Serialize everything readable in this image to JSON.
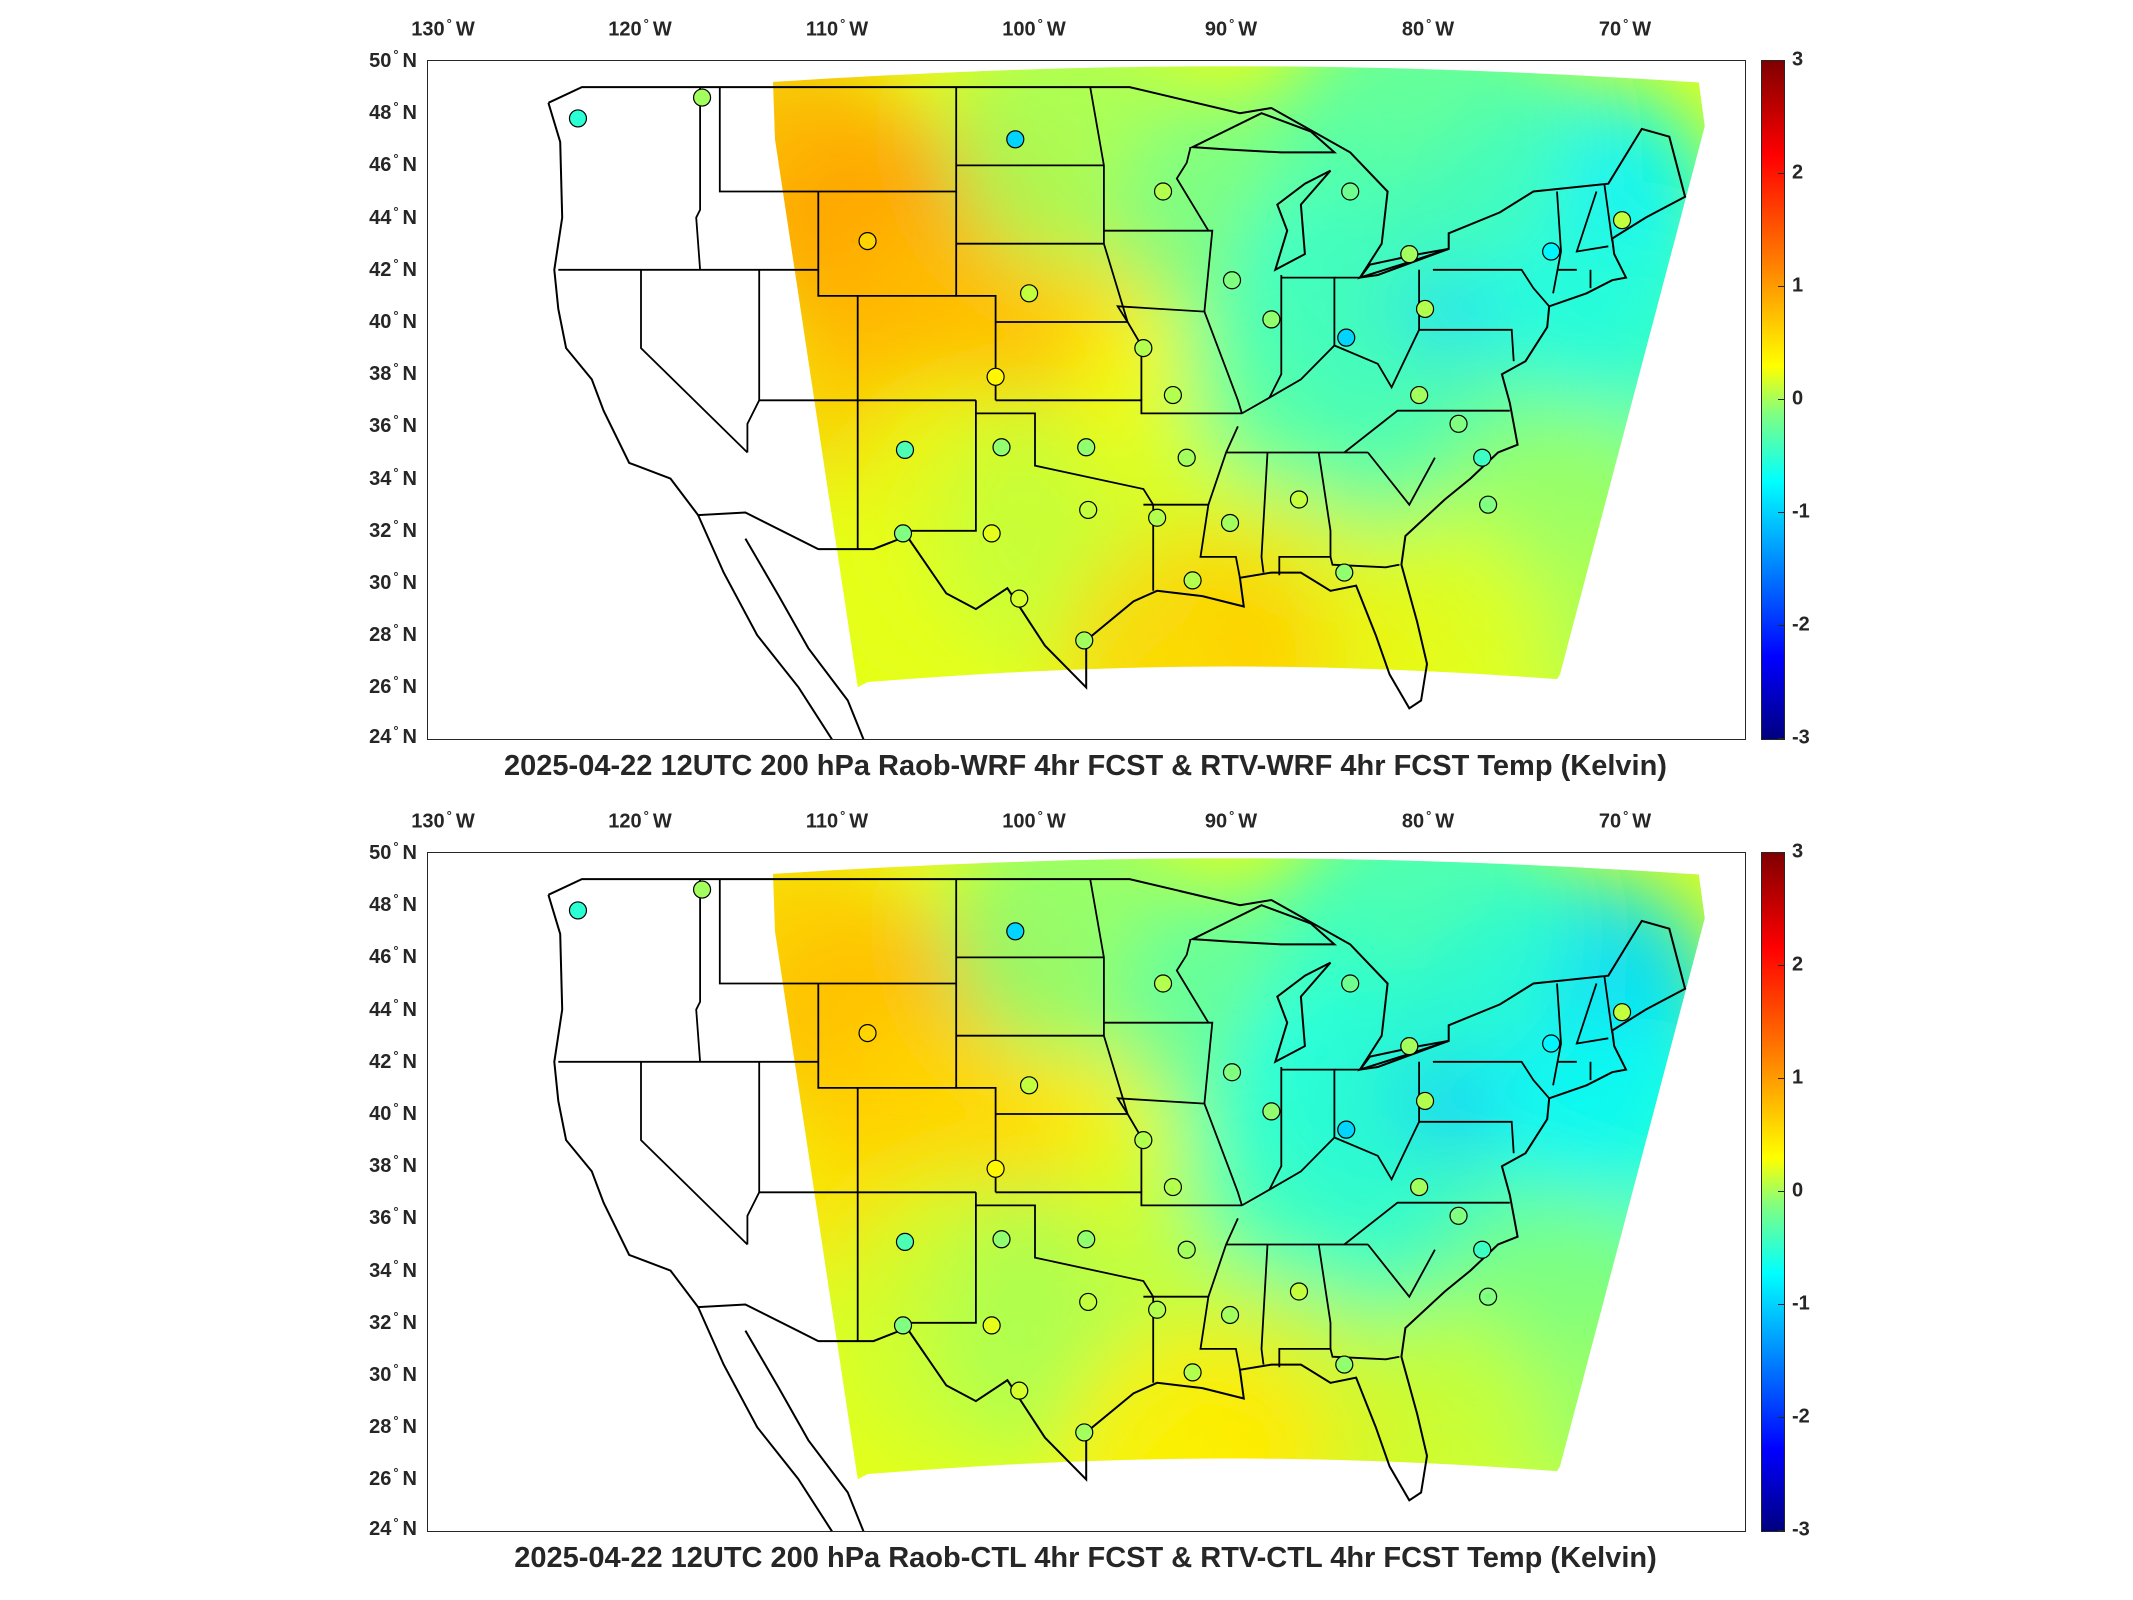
{
  "panels": [
    {
      "title": "2025-04-22 12UTC 200 hPa Raob-WRF 4hr FCST & RTV-WRF 4hr FCST Temp (Kelvin)",
      "lon_labels": [
        "130",
        "120",
        "110",
        "100",
        "90",
        "80",
        "70"
      ],
      "lon_suffix": "W",
      "lat_labels": [
        "50",
        "48",
        "46",
        "44",
        "42",
        "40",
        "38",
        "36",
        "34",
        "32",
        "30",
        "28",
        "26",
        "24"
      ],
      "lat_suffix": "N",
      "colorbar_ticks": [
        "3",
        "2",
        "1",
        "0",
        "-1",
        "-2",
        "-3"
      ],
      "colorbar_range": [
        -3,
        3
      ],
      "colorbar_colormap": "jet",
      "stations": [
        {
          "lon": -123.2,
          "lat": 47.8,
          "value": -0.5
        },
        {
          "lon": -116.9,
          "lat": 48.6,
          "value": 0.2
        },
        {
          "lon": -101.0,
          "lat": 47.0,
          "value": -1.0
        },
        {
          "lon": -93.5,
          "lat": 45.0,
          "value": 0.3
        },
        {
          "lon": -84.0,
          "lat": 45.0,
          "value": -0.1
        },
        {
          "lon": -70.2,
          "lat": 43.9,
          "value": 0.4
        },
        {
          "lon": -108.5,
          "lat": 43.1,
          "value": 1.0
        },
        {
          "lon": -81.0,
          "lat": 42.6,
          "value": 0.2
        },
        {
          "lon": -73.8,
          "lat": 42.7,
          "value": -0.8
        },
        {
          "lon": -90.0,
          "lat": 41.6,
          "value": 0.0
        },
        {
          "lon": -100.3,
          "lat": 41.1,
          "value": 0.4
        },
        {
          "lon": -80.2,
          "lat": 40.5,
          "value": 0.3
        },
        {
          "lon": -88.0,
          "lat": 40.1,
          "value": 0.1
        },
        {
          "lon": -84.2,
          "lat": 39.4,
          "value": -1.0
        },
        {
          "lon": -94.5,
          "lat": 39.0,
          "value": 0.3
        },
        {
          "lon": -102.0,
          "lat": 37.9,
          "value": 0.8
        },
        {
          "lon": -93.0,
          "lat": 37.2,
          "value": 0.3
        },
        {
          "lon": -80.5,
          "lat": 37.2,
          "value": 0.2
        },
        {
          "lon": -78.5,
          "lat": 36.1,
          "value": 0.0
        },
        {
          "lon": -106.6,
          "lat": 35.1,
          "value": -0.3
        },
        {
          "lon": -101.7,
          "lat": 35.2,
          "value": 0.1
        },
        {
          "lon": -97.4,
          "lat": 35.2,
          "value": 0.1
        },
        {
          "lon": -92.3,
          "lat": 34.8,
          "value": 0.2
        },
        {
          "lon": -86.6,
          "lat": 33.2,
          "value": 0.4
        },
        {
          "lon": -97.3,
          "lat": 32.8,
          "value": 0.4
        },
        {
          "lon": -77.0,
          "lat": 33.0,
          "value": 0.0
        },
        {
          "lon": -93.8,
          "lat": 32.5,
          "value": 0.3
        },
        {
          "lon": -90.1,
          "lat": 32.3,
          "value": 0.2
        },
        {
          "lon": -102.2,
          "lat": 31.9,
          "value": 0.6
        },
        {
          "lon": -106.7,
          "lat": 31.9,
          "value": 0.0
        },
        {
          "lon": -92.0,
          "lat": 30.1,
          "value": 0.3
        },
        {
          "lon": -84.3,
          "lat": 30.4,
          "value": 0.1
        },
        {
          "lon": -100.8,
          "lat": 29.4,
          "value": 0.5
        },
        {
          "lon": -97.5,
          "lat": 27.8,
          "value": 0.2
        },
        {
          "lon": -77.3,
          "lat": 34.8,
          "value": -0.4
        }
      ]
    },
    {
      "title": "2025-04-22 12UTC 200 hPa Raob-CTL 4hr FCST & RTV-CTL 4hr FCST Temp (Kelvin)",
      "lon_labels": [
        "130",
        "120",
        "110",
        "100",
        "90",
        "80",
        "70"
      ],
      "lon_suffix": "W",
      "lat_labels": [
        "50",
        "48",
        "46",
        "44",
        "42",
        "40",
        "38",
        "36",
        "34",
        "32",
        "30",
        "28",
        "26",
        "24"
      ],
      "lat_suffix": "N",
      "colorbar_ticks": [
        "3",
        "2",
        "1",
        "0",
        "-1",
        "-2",
        "-3"
      ],
      "colorbar_range": [
        -3,
        3
      ],
      "colorbar_colormap": "jet",
      "stations": [
        {
          "lon": -123.2,
          "lat": 47.8,
          "value": -0.5
        },
        {
          "lon": -116.9,
          "lat": 48.6,
          "value": 0.2
        },
        {
          "lon": -101.0,
          "lat": 47.0,
          "value": -1.0
        },
        {
          "lon": -93.5,
          "lat": 45.0,
          "value": 0.3
        },
        {
          "lon": -84.0,
          "lat": 45.0,
          "value": -0.1
        },
        {
          "lon": -70.2,
          "lat": 43.9,
          "value": 0.4
        },
        {
          "lon": -108.5,
          "lat": 43.1,
          "value": 1.0
        },
        {
          "lon": -81.0,
          "lat": 42.6,
          "value": 0.2
        },
        {
          "lon": -73.8,
          "lat": 42.7,
          "value": -0.8
        },
        {
          "lon": -90.0,
          "lat": 41.6,
          "value": 0.0
        },
        {
          "lon": -100.3,
          "lat": 41.1,
          "value": 0.4
        },
        {
          "lon": -80.2,
          "lat": 40.5,
          "value": 0.3
        },
        {
          "lon": -88.0,
          "lat": 40.1,
          "value": 0.1
        },
        {
          "lon": -84.2,
          "lat": 39.4,
          "value": -1.0
        },
        {
          "lon": -94.5,
          "lat": 39.0,
          "value": 0.3
        },
        {
          "lon": -102.0,
          "lat": 37.9,
          "value": 0.8
        },
        {
          "lon": -93.0,
          "lat": 37.2,
          "value": 0.3
        },
        {
          "lon": -80.5,
          "lat": 37.2,
          "value": 0.2
        },
        {
          "lon": -78.5,
          "lat": 36.1,
          "value": 0.0
        },
        {
          "lon": -106.6,
          "lat": 35.1,
          "value": -0.3
        },
        {
          "lon": -101.7,
          "lat": 35.2,
          "value": 0.1
        },
        {
          "lon": -97.4,
          "lat": 35.2,
          "value": 0.1
        },
        {
          "lon": -92.3,
          "lat": 34.8,
          "value": 0.2
        },
        {
          "lon": -86.6,
          "lat": 33.2,
          "value": 0.4
        },
        {
          "lon": -97.3,
          "lat": 32.8,
          "value": 0.4
        },
        {
          "lon": -77.0,
          "lat": 33.0,
          "value": 0.0
        },
        {
          "lon": -93.8,
          "lat": 32.5,
          "value": 0.3
        },
        {
          "lon": -90.1,
          "lat": 32.3,
          "value": 0.2
        },
        {
          "lon": -102.2,
          "lat": 31.9,
          "value": 0.6
        },
        {
          "lon": -106.7,
          "lat": 31.9,
          "value": 0.0
        },
        {
          "lon": -92.0,
          "lat": 30.1,
          "value": 0.3
        },
        {
          "lon": -84.3,
          "lat": 30.4,
          "value": 0.1
        },
        {
          "lon": -100.8,
          "lat": 29.4,
          "value": 0.5
        },
        {
          "lon": -97.5,
          "lat": 27.8,
          "value": 0.2
        },
        {
          "lon": -77.3,
          "lat": 34.8,
          "value": -0.4
        }
      ]
    }
  ]
}
